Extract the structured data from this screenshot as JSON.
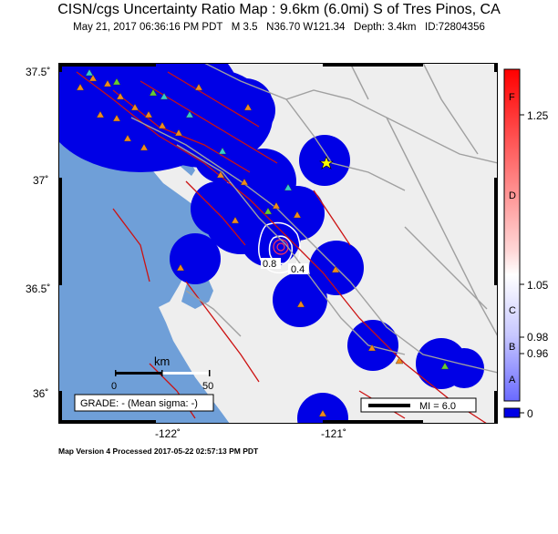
{
  "header": {
    "title": "CISN/cgs Uncertainty Ratio Map : 9.6km (6.0mi) S of Tres Pinos, CA",
    "subtitle": "May 21, 2017 06:36:16 PM PDT   M 3.5   N36.70 W121.34   Depth: 3.4km   ID:72804356"
  },
  "map": {
    "lat_ticks": [
      "37.5˚",
      "37˚",
      "36.5˚",
      "36˚"
    ],
    "lon_ticks": [
      "-122˚",
      "-121˚"
    ],
    "grade_label": "GRADE: - (Mean sigma: -)",
    "scale_bar": {
      "unit": "km",
      "start": "0",
      "end": "50"
    },
    "mi_legend": "MI = 6.0",
    "contour_labels": [
      "0.8",
      "0.4"
    ],
    "colors": {
      "ocean": "#6f9fd8",
      "land": "#eeeeee",
      "coverage": "#0000e6",
      "fault": "#cc1111",
      "road": "#a0a0a0",
      "station_orange": "#f08a1c",
      "station_cyan": "#33cccc",
      "station_green": "#66cc33"
    }
  },
  "colorbar": {
    "value_labels": [
      "1.25",
      "1.05",
      "0.98",
      "0.96",
      "0"
    ],
    "grade_letters": [
      "F",
      "D",
      "C",
      "B",
      "A"
    ]
  },
  "footer": {
    "version_text": "Map Version 4 Processed 2017-05-22 02:57:13 PM PDT"
  }
}
